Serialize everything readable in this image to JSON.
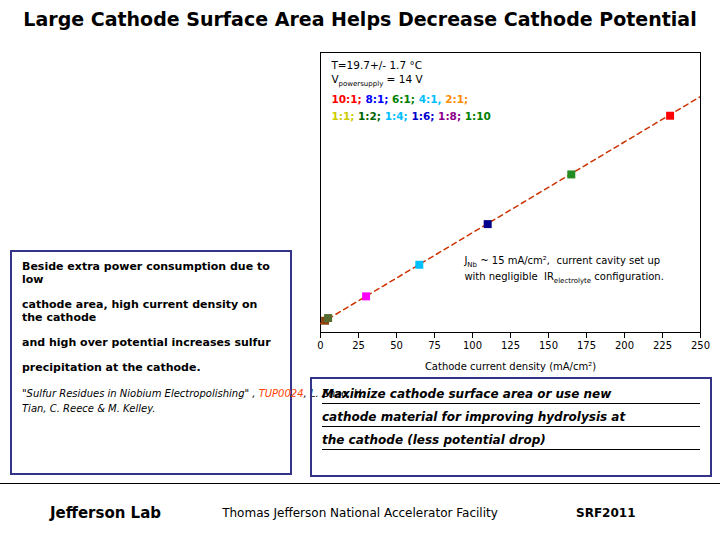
{
  "chart_data": {
    "type": "scatter",
    "title": "Large Cathode Surface Area Helps Decrease Cathode Potential",
    "xlabel": "Cathode current density (mA/cm²)",
    "xlim": [
      0,
      250
    ],
    "ylim": [
      -10,
      300
    ],
    "xticks": [
      0,
      25,
      50,
      75,
      100,
      125,
      150,
      175,
      200,
      225,
      250
    ],
    "tick_labels": "x",
    "series": [
      {
        "type": "scatter",
        "x": [
          3,
          5,
          30,
          65,
          110,
          165,
          230
        ],
        "values": [
          3,
          6,
          30,
          65,
          110,
          165,
          230
        ],
        "colors": [
          "#8B4513",
          "#556B2F",
          "#FF00FF",
          "#00BFFF",
          "#00008B",
          "#228B22",
          "#FF0000"
        ],
        "marker": "square"
      },
      {
        "type": "line",
        "x": [
          0,
          250
        ],
        "values": [
          0,
          251.25
        ],
        "color": "#cc3300",
        "line_style": "dashed"
      }
    ],
    "notes": [
      {
        "text": "T=19.7+/- 1.7 °C"
      },
      {
        "text": "V",
        "subscript": "powersupply",
        "text_after": " = 14 V"
      }
    ],
    "ratio_labels": [
      [
        {
          "text": "10:1; ",
          "color": "#FF0000"
        },
        {
          "text": "8:1; ",
          "color": "#0000FF"
        },
        {
          "text": "6:1; ",
          "color": "#008000"
        },
        {
          "text": "4:1, ",
          "color": "#00BFFF"
        },
        {
          "text": "2:1;",
          "color": "#FF8C00"
        }
      ],
      [
        {
          "text": "1:1; ",
          "color": "#CCCC00"
        },
        {
          "text": "1:2; ",
          "color": "#006400"
        },
        {
          "text": "1:4; ",
          "color": "#00BFFF"
        },
        {
          "text": "1:6; ",
          "color": "#0000CD"
        },
        {
          "text": "1:8; ",
          "color": "#8B008B"
        },
        {
          "text": "1:10",
          "color": "#008000"
        }
      ]
    ],
    "annotation": [
      {
        "text": "J",
        "subscript": "Nb",
        "text_after": " ~ 15 mA/cm²,  current cavity set up"
      },
      {
        "text": "with negligible  IR",
        "subscript": "electrolyte",
        "text_after": " configuration."
      }
    ],
    "left_box": {
      "lines": [
        "Beside extra power consumption due to low",
        "cathode area, high current density on the cathode",
        "and high over potential  increases sulfur",
        "precipitation at the cathode."
      ],
      "citation": [
        [
          {
            "text": "\"Sulfur Residues in Niobium Electropolishing\" , "
          },
          {
            "text": "TUP0024",
            "color": "#FF4400"
          },
          {
            "text": ", L. Zhao, H."
          }
        ],
        [
          {
            "text": "Tian, C. Reece & M. Kelley."
          }
        ]
      ],
      "color": "#333388"
    },
    "right_box": {
      "lines": [
        "Maximize cathode surface area or use new",
        "cathode material for improving hydrolysis at",
        "the cathode (less potential drop)"
      ],
      "color": "#333388"
    },
    "footer": {
      "left": "Jefferson Lab",
      "center": "Thomas Jefferson National Accelerator Facility",
      "right": "SRF2011"
    }
  }
}
